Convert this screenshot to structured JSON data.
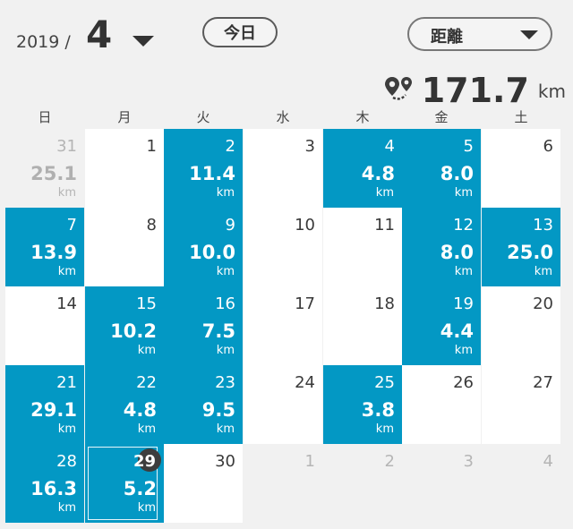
{
  "header": {
    "year": "2019 /",
    "month": "4",
    "today_label": "今日",
    "metric_label": "距離"
  },
  "summary": {
    "total": "171.7",
    "unit": "km",
    "icon": "route-icon"
  },
  "weekdays": [
    "日",
    "月",
    "火",
    "水",
    "木",
    "金",
    "土"
  ],
  "colors": {
    "accent": "#0398c4",
    "background": "#f1f1f1",
    "cell": "#ffffff"
  },
  "weeks": [
    [
      {
        "day": "31",
        "dist": "25.1",
        "unit": "km",
        "state": "out"
      },
      {
        "day": "1",
        "dist": "",
        "unit": "",
        "state": "white"
      },
      {
        "day": "2",
        "dist": "11.4",
        "unit": "km",
        "state": "blue"
      },
      {
        "day": "3",
        "dist": "",
        "unit": "",
        "state": "white"
      },
      {
        "day": "4",
        "dist": "4.8",
        "unit": "km",
        "state": "blue"
      },
      {
        "day": "5",
        "dist": "8.0",
        "unit": "km",
        "state": "blue"
      },
      {
        "day": "6",
        "dist": "",
        "unit": "",
        "state": "white"
      }
    ],
    [
      {
        "day": "7",
        "dist": "13.9",
        "unit": "km",
        "state": "blue"
      },
      {
        "day": "8",
        "dist": "",
        "unit": "",
        "state": "white"
      },
      {
        "day": "9",
        "dist": "10.0",
        "unit": "km",
        "state": "blue"
      },
      {
        "day": "10",
        "dist": "",
        "unit": "",
        "state": "white"
      },
      {
        "day": "11",
        "dist": "",
        "unit": "",
        "state": "white"
      },
      {
        "day": "12",
        "dist": "8.0",
        "unit": "km",
        "state": "blue"
      },
      {
        "day": "13",
        "dist": "25.0",
        "unit": "km",
        "state": "blue"
      }
    ],
    [
      {
        "day": "14",
        "dist": "",
        "unit": "",
        "state": "white"
      },
      {
        "day": "15",
        "dist": "10.2",
        "unit": "km",
        "state": "blue"
      },
      {
        "day": "16",
        "dist": "7.5",
        "unit": "km",
        "state": "blue"
      },
      {
        "day": "17",
        "dist": "",
        "unit": "",
        "state": "white"
      },
      {
        "day": "18",
        "dist": "",
        "unit": "",
        "state": "white"
      },
      {
        "day": "19",
        "dist": "4.4",
        "unit": "km",
        "state": "blue"
      },
      {
        "day": "20",
        "dist": "",
        "unit": "",
        "state": "white"
      }
    ],
    [
      {
        "day": "21",
        "dist": "29.1",
        "unit": "km",
        "state": "blue"
      },
      {
        "day": "22",
        "dist": "4.8",
        "unit": "km",
        "state": "blue"
      },
      {
        "day": "23",
        "dist": "9.5",
        "unit": "km",
        "state": "blue"
      },
      {
        "day": "24",
        "dist": "",
        "unit": "",
        "state": "white"
      },
      {
        "day": "25",
        "dist": "3.8",
        "unit": "km",
        "state": "blue"
      },
      {
        "day": "26",
        "dist": "",
        "unit": "",
        "state": "white"
      },
      {
        "day": "27",
        "dist": "",
        "unit": "",
        "state": "white"
      }
    ],
    [
      {
        "day": "28",
        "dist": "16.3",
        "unit": "km",
        "state": "blue"
      },
      {
        "day": "29",
        "dist": "5.2",
        "unit": "km",
        "state": "blue",
        "today": true
      },
      {
        "day": "30",
        "dist": "",
        "unit": "",
        "state": "white"
      },
      {
        "day": "1",
        "dist": "",
        "unit": "",
        "state": "out"
      },
      {
        "day": "2",
        "dist": "",
        "unit": "",
        "state": "out"
      },
      {
        "day": "3",
        "dist": "",
        "unit": "",
        "state": "out"
      },
      {
        "day": "4",
        "dist": "",
        "unit": "",
        "state": "out"
      }
    ]
  ]
}
